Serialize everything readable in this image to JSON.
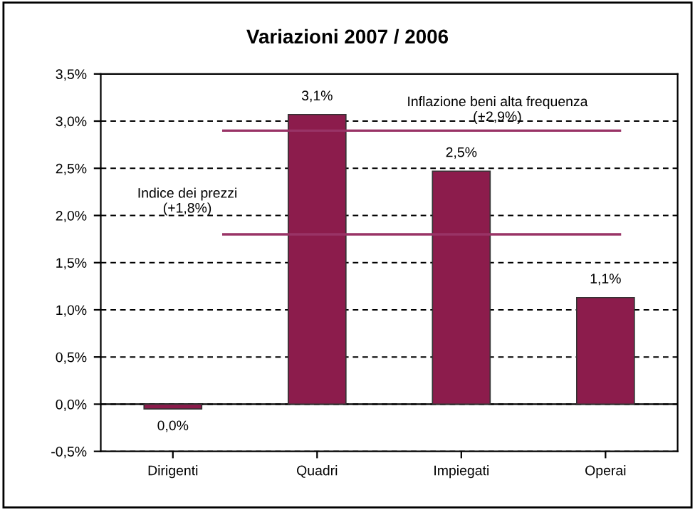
{
  "chart_data": {
    "type": "bar",
    "title": "Variazioni 2007 / 2006",
    "categories": [
      "Dirigenti",
      "Quadri",
      "Impiegati",
      "Operai"
    ],
    "values": [
      -0.05,
      3.07,
      2.47,
      1.13
    ],
    "value_labels": [
      "0,0%",
      "3,1%",
      "2,5%",
      "1,1%"
    ],
    "color": "#8c1c4c",
    "ylim": [
      -0.5,
      3.5
    ],
    "yticks": [
      {
        "value": -0.5,
        "label": "-0,5%"
      },
      {
        "value": 0,
        "label": "0,0%"
      },
      {
        "value": 0.5,
        "label": "0,5%"
      },
      {
        "value": 1.0,
        "label": "1,0%"
      },
      {
        "value": 1.5,
        "label": "1,5%"
      },
      {
        "value": 2.0,
        "label": "2,0%"
      },
      {
        "value": 2.5,
        "label": "2,5%"
      },
      {
        "value": 3.0,
        "label": "3,0%"
      },
      {
        "value": 3.5,
        "label": "3,5%"
      }
    ],
    "grid": "y",
    "ref_lines": [
      {
        "axis": "y",
        "value": 2.9,
        "label": "Inflazione beni alta frequenza\n(+2,9%)",
        "color": "#993366"
      },
      {
        "axis": "y",
        "value": 1.8,
        "label": "Indice dei prezzi\n(+1,8%)",
        "color": "#993366"
      }
    ]
  }
}
